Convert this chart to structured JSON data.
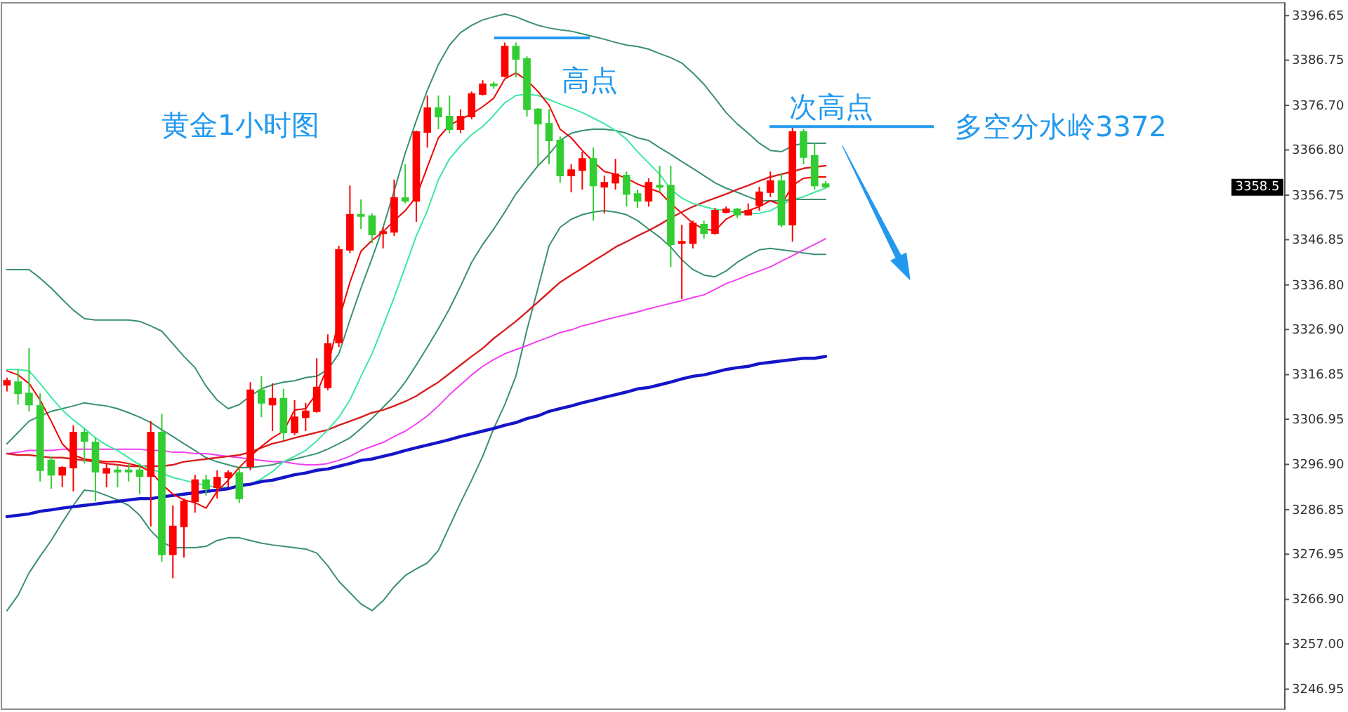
{
  "chart_data": {
    "type": "candlestick",
    "title": "黄金1小时图",
    "categories": [
      null,
      null,
      null,
      null,
      null,
      null,
      null,
      null,
      null,
      null,
      null,
      null,
      null,
      null,
      null,
      null,
      null,
      null,
      null,
      null,
      null,
      null,
      null,
      null,
      null,
      null,
      null,
      null,
      null,
      null,
      null,
      null,
      null,
      null,
      null,
      null,
      null,
      null,
      null,
      null,
      null,
      null,
      null,
      null,
      null,
      null,
      null,
      null,
      null,
      null,
      null,
      null,
      null,
      null,
      null,
      null,
      null,
      null,
      null,
      null,
      null,
      null,
      null,
      null,
      null,
      null,
      null,
      null,
      null,
      null,
      null,
      null,
      null,
      null,
      null,
      null,
      null,
      null,
      null,
      null,
      null,
      null,
      null,
      null,
      null,
      null,
      null,
      null,
      null,
      null,
      null,
      null,
      null,
      null,
      null,
      null,
      null,
      null,
      null,
      null,
      null,
      null,
      null,
      null,
      null,
      null,
      null,
      null,
      null,
      null,
      null,
      null,
      null,
      null,
      null,
      null
    ],
    "ohlc": [
      [
        3314.6,
        3316.2,
        3313.1,
        3315.5
      ],
      [
        3315.2,
        3318.0,
        3310.2,
        3312.7
      ],
      [
        3312.7,
        3322.7,
        3308.7,
        3310.2
      ],
      [
        3309.9,
        3312.7,
        3293.1,
        3295.6
      ],
      [
        3297.8,
        3298.7,
        3291.5,
        3294.6
      ],
      [
        3294.6,
        3296.5,
        3291.8,
        3296.2
      ],
      [
        3296.2,
        3305.6,
        3290.9,
        3304.0
      ],
      [
        3304.0,
        3304.9,
        3297.1,
        3302.1
      ],
      [
        3301.8,
        3302.8,
        3288.7,
        3295.3
      ],
      [
        3295.0,
        3297.1,
        3291.8,
        3295.9
      ],
      [
        3295.6,
        3296.5,
        3291.8,
        3295.4
      ],
      [
        3295.6,
        3297.1,
        3293.1,
        3295.4
      ],
      [
        3295.6,
        3297.1,
        3290.3,
        3294.3
      ],
      [
        3294.3,
        3306.5,
        3283.1,
        3304.0
      ],
      [
        3304.0,
        3308.1,
        3275.3,
        3276.9
      ],
      [
        3276.9,
        3287.8,
        3271.6,
        3283.1
      ],
      [
        3283.1,
        3289.3,
        3276.2,
        3288.7
      ],
      [
        3288.7,
        3294.6,
        3286.2,
        3293.4
      ],
      [
        3293.4,
        3294.6,
        3290.0,
        3291.5
      ],
      [
        3291.8,
        3295.6,
        3289.3,
        3294.0
      ],
      [
        3294.0,
        3295.6,
        3291.8,
        3295.0
      ],
      [
        3295.0,
        3296.2,
        3288.4,
        3289.3
      ],
      [
        3296.5,
        3315.2,
        3295.6,
        3313.4
      ],
      [
        3313.4,
        3316.5,
        3307.4,
        3310.6
      ],
      [
        3310.2,
        3314.9,
        3304.3,
        3311.5
      ],
      [
        3311.5,
        3313.7,
        3302.4,
        3304.0
      ],
      [
        3304.0,
        3311.2,
        3303.4,
        3307.4
      ],
      [
        3307.4,
        3310.6,
        3304.3,
        3308.7
      ],
      [
        3308.7,
        3320.5,
        3308.4,
        3314.0
      ],
      [
        3314.0,
        3325.8,
        3313.4,
        3323.7
      ],
      [
        3324.0,
        3345.5,
        3323.0,
        3344.6
      ],
      [
        3344.6,
        3358.9,
        3343.9,
        3352.4
      ],
      [
        3352.4,
        3355.8,
        3349.2,
        3352.1
      ],
      [
        3352.1,
        3352.7,
        3346.1,
        3348.0
      ],
      [
        3348.3,
        3349.6,
        3344.9,
        3348.6
      ],
      [
        3348.6,
        3360.2,
        3347.7,
        3356.1
      ],
      [
        3356.1,
        3363.6,
        3354.9,
        3355.5
      ],
      [
        3355.5,
        3371.1,
        3350.8,
        3370.8
      ],
      [
        3370.8,
        3378.9,
        3367.3,
        3376.1
      ],
      [
        3376.1,
        3378.9,
        3371.4,
        3374.2
      ],
      [
        3374.2,
        3378.9,
        3370.5,
        3371.4
      ],
      [
        3371.4,
        3375.8,
        3370.5,
        3374.2
      ],
      [
        3374.2,
        3379.8,
        3373.6,
        3379.2
      ],
      [
        3379.2,
        3382.3,
        3378.9,
        3381.4
      ],
      [
        3381.4,
        3382.0,
        3380.4,
        3381.1
      ],
      [
        3383.2,
        3390.7,
        3382.9,
        3389.8
      ],
      [
        3389.8,
        3390.7,
        3382.9,
        3387.0
      ],
      [
        3387.0,
        3387.6,
        3374.2,
        3375.8
      ],
      [
        3375.8,
        3376.1,
        3363.3,
        3372.6
      ],
      [
        3372.6,
        3375.8,
        3363.6,
        3368.9
      ],
      [
        3368.9,
        3369.8,
        3359.5,
        3361.1
      ],
      [
        3361.1,
        3363.6,
        3357.4,
        3362.3
      ],
      [
        3362.3,
        3366.4,
        3358.0,
        3364.8
      ],
      [
        3364.8,
        3367.3,
        3351.1,
        3358.9
      ],
      [
        3358.6,
        3361.1,
        3352.7,
        3359.5
      ],
      [
        3359.5,
        3364.8,
        3358.0,
        3361.4
      ],
      [
        3361.1,
        3362.0,
        3354.2,
        3357.0
      ],
      [
        3357.0,
        3358.0,
        3353.9,
        3355.5
      ],
      [
        3355.5,
        3360.5,
        3354.2,
        3359.5
      ],
      [
        3358.9,
        3363.3,
        3357.4,
        3358.6
      ],
      [
        3358.9,
        3363.3,
        3340.8,
        3345.8
      ],
      [
        3346.1,
        3350.2,
        3333.6,
        3346.4
      ],
      [
        3346.1,
        3351.1,
        3344.9,
        3350.5
      ],
      [
        3350.2,
        3351.1,
        3347.1,
        3348.3
      ],
      [
        3348.3,
        3353.9,
        3348.0,
        3353.3
      ],
      [
        3353.0,
        3354.2,
        3352.7,
        3353.6
      ],
      [
        3353.6,
        3353.9,
        3351.7,
        3352.4
      ],
      [
        3352.4,
        3354.9,
        3352.2,
        3353.3
      ],
      [
        3354.5,
        3358.6,
        3353.3,
        3357.4
      ],
      [
        3357.4,
        3362.0,
        3356.4,
        3359.9
      ],
      [
        3359.9,
        3361.7,
        3349.6,
        3350.2
      ],
      [
        3350.2,
        3372.0,
        3346.4,
        3370.8
      ],
      [
        3370.8,
        3371.4,
        3363.6,
        3365.2
      ],
      [
        3365.5,
        3368.3,
        3358.0,
        3358.9
      ],
      [
        3359.2,
        3359.9,
        3358.3,
        3358.6
      ],
      null,
      null,
      null,
      null,
      null,
      null,
      null,
      null,
      null,
      null,
      null,
      null,
      null,
      null,
      null,
      null,
      null,
      null,
      null,
      null,
      null,
      null,
      null,
      null,
      null,
      null,
      null,
      null,
      null,
      null,
      null,
      null,
      null,
      null,
      null,
      null,
      null,
      null,
      null,
      null,
      null
    ],
    "colors": [
      "#ff0000",
      "#32cd32",
      "#32cd32",
      "#32cd32",
      "#32cd32",
      "#ff0000",
      "#ff0000",
      "#32cd32",
      "#32cd32",
      "#ff0000",
      "#32cd32",
      "#32cd32",
      "#32cd32",
      "#ff0000",
      "#32cd32",
      "#ff0000",
      "#ff0000",
      "#ff0000",
      "#32cd32",
      "#ff0000",
      "#ff0000",
      "#32cd32",
      "#ff0000",
      "#32cd32",
      "#ff0000",
      "#32cd32",
      "#ff0000",
      "#ff0000",
      "#ff0000",
      "#ff0000",
      "#ff0000",
      "#ff0000",
      "#32cd32",
      "#32cd32",
      "#ff0000",
      "#ff0000",
      "#32cd32",
      "#ff0000",
      "#ff0000",
      "#32cd32",
      "#32cd32",
      "#ff0000",
      "#ff0000",
      "#ff0000",
      "#32cd32",
      "#ff0000",
      "#32cd32",
      "#32cd32",
      "#32cd32",
      "#32cd32",
      "#32cd32",
      "#ff0000",
      "#ff0000",
      "#32cd32",
      "#ff0000",
      "#ff0000",
      "#32cd32",
      "#32cd32",
      "#ff0000",
      "#32cd32",
      "#32cd32",
      "#ff0000",
      "#ff0000",
      "#32cd32",
      "#ff0000",
      "#ff0000",
      "#32cd32",
      "#ff0000",
      "#ff0000",
      "#ff0000",
      "#32cd32",
      "#ff0000",
      "#32cd32",
      "#32cd32",
      "#32cd32",
      null,
      null,
      null,
      null,
      null,
      null,
      null,
      null,
      null,
      null,
      null,
      null,
      null,
      null,
      null,
      null,
      null,
      null,
      null,
      null,
      null,
      null,
      null,
      null,
      null,
      null,
      null,
      null,
      null,
      null,
      null,
      null,
      null,
      null,
      null,
      null,
      null,
      null,
      null,
      null,
      null
    ],
    "series": [
      {
        "type": "line",
        "color": "#3a9070",
        "values": [
          3340.2,
          3340.2,
          3340.2,
          3338.3,
          3336.1,
          3333.6,
          3331.2,
          3329.3,
          3329.0,
          3329.0,
          3329.0,
          3329.0,
          3328.7,
          3327.7,
          3326.5,
          3323.7,
          3320.9,
          3318.4,
          3314.3,
          3311.2,
          3309.3,
          3310.2,
          3312.1,
          3313.7,
          3314.6,
          3315.2,
          3315.5,
          3316.2,
          3316.5,
          3318.0,
          3321.5,
          3329.0,
          3336.1,
          3342.7,
          3349.6,
          3357.7,
          3366.1,
          3373.3,
          3380.1,
          3385.8,
          3390.1,
          3392.9,
          3394.5,
          3395.7,
          3396.4,
          3397.0,
          3396.4,
          3395.4,
          3394.5,
          3393.9,
          3393.5,
          3393.2,
          3392.6,
          3392.0,
          3391.4,
          3390.7,
          3390.1,
          3389.8,
          3389.2,
          3388.2,
          3387.3,
          3386.1,
          3383.9,
          3381.4,
          3378.3,
          3375.1,
          3372.6,
          3370.5,
          3368.3,
          3366.7,
          3366.4,
          3367.7,
          3368.3,
          3368.3,
          3368.3,
          null,
          null,
          null,
          null,
          null,
          null,
          null,
          null,
          null,
          null,
          null,
          null,
          null,
          null,
          null,
          null,
          null,
          null,
          null,
          null,
          null,
          null,
          null,
          null,
          null,
          null,
          null,
          null,
          null,
          null,
          null,
          null,
          null,
          null,
          null,
          null,
          null,
          null,
          null,
          null,
          null
        ]
      },
      {
        "type": "line",
        "color": "#3a9070",
        "values": [
          3301.5,
          3304.0,
          3306.5,
          3307.7,
          3308.7,
          3309.3,
          3309.9,
          3310.6,
          3310.2,
          3309.9,
          3309.3,
          3308.4,
          3307.4,
          3306.2,
          3304.6,
          3303.1,
          3301.5,
          3300.0,
          3298.4,
          3297.5,
          3296.8,
          3296.2,
          3296.2,
          3296.5,
          3296.8,
          3297.5,
          3298.1,
          3298.7,
          3299.3,
          3300.3,
          3301.5,
          3302.8,
          3304.9,
          3307.1,
          3309.6,
          3312.1,
          3315.2,
          3319.0,
          3323.0,
          3327.1,
          3331.5,
          3336.5,
          3341.8,
          3345.8,
          3349.2,
          3353.0,
          3357.0,
          3360.2,
          3363.3,
          3365.8,
          3368.9,
          3370.5,
          3371.1,
          3371.4,
          3371.4,
          3371.1,
          3370.5,
          3369.5,
          3368.9,
          3367.3,
          3365.8,
          3364.2,
          3362.7,
          3361.1,
          3359.5,
          3358.3,
          3357.4,
          3356.4,
          3355.5,
          3355.5,
          3355.5,
          3355.8,
          3355.8,
          3355.8,
          3355.8,
          null,
          null,
          null,
          null,
          null,
          null,
          null,
          null,
          null,
          null,
          null,
          null,
          null,
          null,
          null,
          null,
          null,
          null,
          null,
          null,
          null,
          null,
          null,
          null,
          null,
          null,
          null,
          null,
          null,
          null,
          null,
          null,
          null,
          null,
          null,
          null,
          null,
          null,
          null,
          null,
          null
        ]
      },
      {
        "type": "line",
        "color": "#3a9070",
        "values": [
          3264.4,
          3267.8,
          3272.8,
          3276.5,
          3280.0,
          3284.0,
          3287.8,
          3291.2,
          3290.9,
          3290.0,
          3289.0,
          3287.8,
          3285.6,
          3282.2,
          3279.7,
          3278.4,
          3278.4,
          3278.4,
          3278.7,
          3280.0,
          3280.6,
          3280.6,
          3280.0,
          3279.4,
          3279.0,
          3278.7,
          3278.4,
          3278.1,
          3277.2,
          3274.4,
          3270.9,
          3268.4,
          3265.9,
          3264.4,
          3266.6,
          3269.7,
          3272.2,
          3273.7,
          3275.0,
          3277.8,
          3283.1,
          3288.4,
          3293.4,
          3298.7,
          3304.9,
          3310.2,
          3316.5,
          3326.8,
          3336.1,
          3345.5,
          3349.6,
          3351.4,
          3352.4,
          3353.0,
          3353.3,
          3353.0,
          3352.4,
          3351.1,
          3349.2,
          3347.4,
          3345.2,
          3342.4,
          3340.2,
          3339.0,
          3338.6,
          3339.9,
          3341.8,
          3343.3,
          3344.6,
          3344.9,
          3344.6,
          3344.3,
          3343.9,
          3343.6,
          3343.6,
          null,
          null,
          null,
          null,
          null,
          null,
          null,
          null,
          null,
          null,
          null,
          null,
          null,
          null,
          null,
          null,
          null,
          null,
          null,
          null,
          null,
          null,
          null,
          null,
          null,
          null,
          null,
          null,
          null,
          null,
          null,
          null,
          null,
          null,
          null,
          null,
          null,
          null,
          null,
          null,
          null
        ]
      },
      {
        "type": "line",
        "color": "#f040f0",
        "values": [
          3299.3,
          3299.6,
          3300.0,
          3300.0,
          3300.0,
          3300.3,
          3300.3,
          3300.3,
          3300.3,
          3300.3,
          3300.3,
          3300.3,
          3300.3,
          3300.0,
          3300.0,
          3299.6,
          3299.6,
          3299.3,
          3299.3,
          3299.0,
          3298.7,
          3298.4,
          3298.1,
          3297.8,
          3297.5,
          3297.5,
          3297.1,
          3296.8,
          3296.8,
          3297.1,
          3297.8,
          3298.7,
          3300.0,
          3300.9,
          3301.8,
          3303.1,
          3304.3,
          3305.9,
          3307.7,
          3309.9,
          3312.4,
          3314.6,
          3316.8,
          3318.7,
          3320.2,
          3321.5,
          3322.4,
          3323.3,
          3324.3,
          3325.2,
          3326.2,
          3326.8,
          3327.7,
          3328.3,
          3329.0,
          3329.6,
          3330.2,
          3330.8,
          3331.5,
          3332.1,
          3332.7,
          3333.3,
          3334.0,
          3334.6,
          3335.8,
          3337.1,
          3338.0,
          3339.0,
          3339.9,
          3340.8,
          3342.1,
          3343.3,
          3344.6,
          3345.8,
          3347.1,
          null,
          null,
          null,
          null,
          null,
          null,
          null,
          null,
          null,
          null,
          null,
          null,
          null,
          null,
          null,
          null,
          null,
          null,
          null,
          null,
          null,
          null,
          null,
          null,
          null,
          null,
          null,
          null,
          null,
          null,
          null,
          null,
          null,
          null,
          null,
          null,
          null,
          null,
          null,
          null,
          null
        ]
      },
      {
        "type": "line",
        "color": "#d81e1e",
        "values": [
          3299.3,
          3299.0,
          3299.0,
          3298.7,
          3298.4,
          3298.4,
          3298.1,
          3297.8,
          3297.5,
          3297.1,
          3296.8,
          3296.5,
          3296.5,
          3296.5,
          3296.5,
          3296.8,
          3297.5,
          3297.8,
          3298.1,
          3298.4,
          3298.7,
          3299.0,
          3299.6,
          3300.6,
          3301.5,
          3302.1,
          3302.8,
          3303.4,
          3304.0,
          3304.6,
          3305.6,
          3306.5,
          3307.4,
          3308.4,
          3309.0,
          3309.9,
          3310.9,
          3312.1,
          3313.7,
          3315.2,
          3317.1,
          3319.0,
          3320.9,
          3322.7,
          3324.9,
          3326.8,
          3328.7,
          3330.8,
          3333.0,
          3335.2,
          3337.4,
          3339.0,
          3340.5,
          3342.1,
          3343.6,
          3345.2,
          3346.4,
          3347.7,
          3348.9,
          3350.2,
          3351.7,
          3353.0,
          3354.2,
          3355.2,
          3356.1,
          3357.0,
          3358.0,
          3358.9,
          3359.9,
          3360.8,
          3361.4,
          3362.0,
          3362.7,
          3363.0,
          3363.3,
          null,
          null,
          null,
          null,
          null,
          null,
          null,
          null,
          null,
          null,
          null,
          null,
          null,
          null,
          null,
          null,
          null,
          null,
          null,
          null,
          null,
          null,
          null,
          null,
          null,
          null,
          null,
          null,
          null,
          null,
          null,
          null,
          null,
          null,
          null,
          null,
          null,
          null,
          null,
          null,
          null
        ]
      },
      {
        "type": "line",
        "color": "#3ce8a0",
        "values": [
          3318.0,
          3318.0,
          3317.7,
          3314.9,
          3311.8,
          3309.0,
          3306.8,
          3304.9,
          3302.8,
          3301.2,
          3300.0,
          3298.4,
          3296.8,
          3295.9,
          3295.0,
          3294.0,
          3293.4,
          3292.8,
          3292.2,
          3291.8,
          3291.8,
          3291.8,
          3292.5,
          3293.7,
          3295.3,
          3297.5,
          3298.7,
          3300.0,
          3302.1,
          3304.6,
          3307.4,
          3311.2,
          3316.5,
          3321.5,
          3327.7,
          3334.0,
          3340.8,
          3347.7,
          3353.3,
          3360.2,
          3364.8,
          3367.7,
          3370.2,
          3372.0,
          3374.5,
          3377.3,
          3378.9,
          3379.2,
          3378.9,
          3378.0,
          3377.0,
          3376.1,
          3375.1,
          3373.9,
          3372.6,
          3371.1,
          3369.2,
          3366.4,
          3363.9,
          3361.4,
          3358.0,
          3356.1,
          3354.9,
          3354.2,
          3353.6,
          3353.3,
          3353.0,
          3352.7,
          3352.7,
          3353.3,
          3354.6,
          3355.8,
          3356.4,
          3357.4,
          3358.3,
          null,
          null,
          null,
          null,
          null,
          null,
          null,
          null,
          null,
          null,
          null,
          null,
          null,
          null,
          null,
          null,
          null,
          null,
          null,
          null,
          null,
          null,
          null,
          null,
          null,
          null,
          null,
          null,
          null,
          null,
          null,
          null,
          null,
          null,
          null,
          null,
          null,
          null,
          null,
          null,
          null
        ]
      },
      {
        "type": "line",
        "color": "#1515c8",
        "values": [
          3285.3,
          3285.6,
          3285.9,
          3286.5,
          3286.8,
          3287.2,
          3287.5,
          3287.8,
          3288.1,
          3288.4,
          3288.7,
          3289.0,
          3289.3,
          3289.3,
          3289.7,
          3290.0,
          3290.3,
          3290.6,
          3290.9,
          3291.2,
          3291.5,
          3292.2,
          3292.5,
          3293.1,
          3293.4,
          3294.0,
          3294.6,
          3295.0,
          3295.6,
          3295.9,
          3296.5,
          3297.1,
          3297.8,
          3298.1,
          3298.7,
          3299.3,
          3300.0,
          3300.6,
          3301.2,
          3301.8,
          3302.4,
          3303.1,
          3303.7,
          3304.3,
          3304.9,
          3305.6,
          3306.2,
          3307.1,
          3307.7,
          3308.7,
          3309.3,
          3309.9,
          3310.6,
          3311.2,
          3311.8,
          3312.4,
          3313.0,
          3313.7,
          3314.0,
          3314.6,
          3315.2,
          3315.9,
          3316.5,
          3316.8,
          3317.4,
          3318.0,
          3318.4,
          3318.7,
          3319.3,
          3319.6,
          3319.9,
          3320.2,
          3320.5,
          3320.5,
          3320.9,
          null,
          null,
          null,
          null,
          null,
          null,
          null,
          null,
          null,
          null,
          null,
          null,
          null,
          null,
          null,
          null,
          null,
          null,
          null,
          null,
          null,
          null,
          null,
          null,
          null,
          null,
          null,
          null,
          null,
          null,
          null,
          null,
          null,
          null,
          null,
          null,
          null,
          null,
          null,
          null,
          null
        ]
      },
      {
        "type": "line",
        "color": "#ee0000",
        "values": [
          3317.7,
          3316.8,
          3314.9,
          3311.2,
          3306.5,
          3301.5,
          3299.0,
          3298.1,
          3297.8,
          3297.5,
          3297.5,
          3297.1,
          3296.5,
          3295.3,
          3292.5,
          3290.3,
          3289.0,
          3288.4,
          3287.2,
          3290.9,
          3293.4,
          3296.2,
          3298.7,
          3300.9,
          3302.8,
          3304.3,
          3309.0,
          3309.3,
          3312.7,
          3318.7,
          3329.0,
          3337.4,
          3344.3,
          3346.7,
          3348.6,
          3351.1,
          3353.3,
          3356.4,
          3363.0,
          3369.5,
          3372.3,
          3373.6,
          3374.8,
          3376.4,
          3378.3,
          3382.6,
          3383.9,
          3382.3,
          3379.8,
          3376.7,
          3371.4,
          3369.5,
          3366.7,
          3364.2,
          3362.0,
          3361.4,
          3360.5,
          3359.2,
          3358.3,
          3357.4,
          3354.9,
          3352.7,
          3350.5,
          3349.2,
          3348.9,
          3351.4,
          3352.7,
          3353.3,
          3354.2,
          3355.5,
          3354.6,
          3358.9,
          3360.5,
          3360.8,
          3360.8,
          null,
          null,
          null,
          null,
          null,
          null,
          null,
          null,
          null,
          null,
          null,
          null,
          null,
          null,
          null,
          null,
          null,
          null,
          null,
          null,
          null,
          null,
          null,
          null,
          null,
          null,
          null,
          null,
          null,
          null,
          null,
          null,
          null,
          null,
          null,
          null,
          null,
          null,
          null,
          null,
          null
        ]
      }
    ],
    "ylim": [
      3242.5,
      3399.5
    ],
    "yticks": [
      3246.95,
      {
        "value": 3257,
        "label": "3257.00"
      },
      {
        "value": 3266.9,
        "label": "3266.90"
      },
      3276.95,
      3286.85,
      {
        "value": 3296.9,
        "label": "3296.90"
      },
      3306.95,
      3316.85,
      {
        "value": 3326.9,
        "label": "3326.90"
      },
      {
        "value": 3336.8,
        "label": "3336.80"
      },
      3346.85,
      3356.75,
      {
        "value": 3366.8,
        "label": "3366.80"
      },
      {
        "value": 3376.7,
        "label": "3376.70"
      },
      3386.75,
      3396.65
    ],
    "tick_labels": "y",
    "ref_lines": [
      {
        "axis": "y",
        "value": 3372,
        "label": "多空分水岭3372",
        "color": "#2299ee"
      }
    ],
    "annotations": [
      {
        "text": "高点",
        "y": 3391.7
      },
      "次高点",
      {
        "text": "3358.5",
        "y": 3358.5
      }
    ]
  }
}
